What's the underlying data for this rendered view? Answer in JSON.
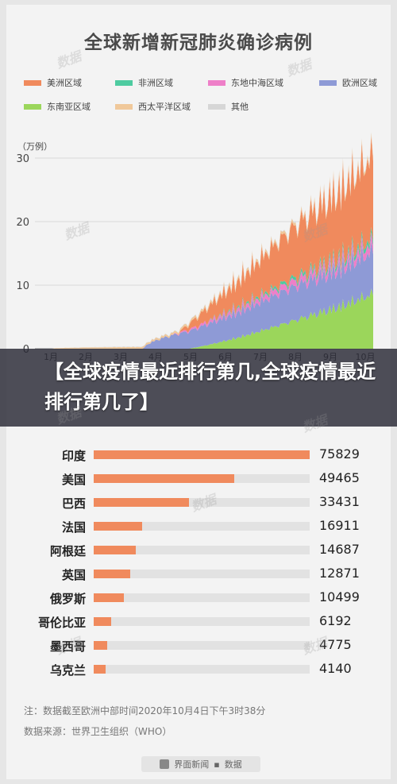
{
  "title": "全球新增新冠肺炎确诊病例",
  "unit_label": "（万例）",
  "legend": [
    {
      "label": "美洲区域",
      "color": "#f08a5d"
    },
    {
      "label": "非洲区域",
      "color": "#4ecba0"
    },
    {
      "label": "东地中海区域",
      "color": "#ee7fc8"
    },
    {
      "label": "欧洲区域",
      "color": "#8e9ad6"
    },
    {
      "label": "东南亚区域",
      "color": "#9bd65b"
    },
    {
      "label": "西太平洋区域",
      "color": "#f0c89a"
    },
    {
      "label": "其他",
      "color": "#d6d6d6"
    }
  ],
  "banner_text": "【全球疫情最近排行第几,全球疫情最近排行第几了】",
  "note": "注：数据截至欧洲中部时间2020年10月4日下午3时38分",
  "source": "数据来源：世界卫生组织（WHO）",
  "footer": {
    "brand": "界面新闻",
    "separator": "▪",
    "partner": "数据"
  },
  "watermark_text": "数据",
  "chart_data": [
    {
      "type": "area",
      "title": "全球新增新冠肺炎确诊病例",
      "ylabel": "（万例）",
      "ylim": [
        0,
        32
      ],
      "yticks": [
        0,
        10,
        20,
        30
      ],
      "x_tick_labels": [
        "1月",
        "2月",
        "3月",
        "4月",
        "5月",
        "6月",
        "7月",
        "8月",
        "9月",
        "10月"
      ],
      "stacked": true,
      "series": [
        {
          "name": "东南亚区域",
          "approx_peak": 9.3
        },
        {
          "name": "欧洲区域",
          "approx_peak": 7.2
        },
        {
          "name": "东地中海区域",
          "approx_peak": 1.4
        },
        {
          "name": "非洲区域",
          "approx_peak": 0.8
        },
        {
          "name": "美洲区域",
          "approx_peak": 14.0
        },
        {
          "name": "西太平洋区域",
          "approx_peak": 0.5
        },
        {
          "name": "其他",
          "approx_peak": 0.1
        }
      ]
    },
    {
      "type": "bar",
      "orientation": "horizontal",
      "categories": [
        "印度",
        "美国",
        "巴西",
        "法国",
        "阿根廷",
        "英国",
        "俄罗斯",
        "哥伦比亚",
        "墨西哥",
        "乌克兰"
      ],
      "values": [
        75829,
        49465,
        33431,
        16911,
        14687,
        12871,
        10499,
        6192,
        4775,
        4140
      ],
      "xlim": [
        0,
        75829
      ]
    }
  ]
}
